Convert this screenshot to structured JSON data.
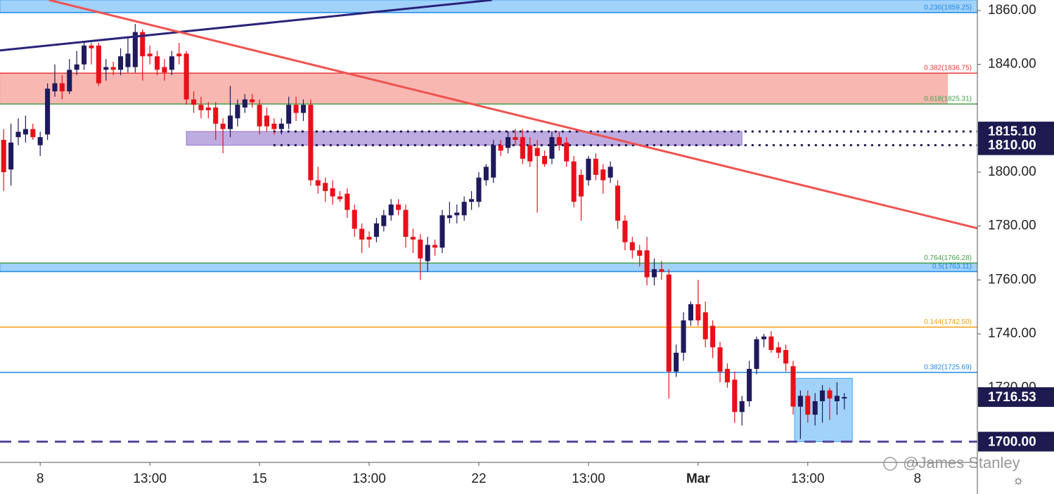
{
  "chart_data": {
    "type": "candlestick",
    "up_color": "#1f1a5c",
    "down_color": "#e8101a",
    "xlim": [
      -0.5,
      133.2
    ],
    "ylim": [
      1692.3,
      1863.9
    ],
    "xticks": [
      {
        "value": 5,
        "label": "8"
      },
      {
        "value": 20,
        "label": "13:00"
      },
      {
        "value": 35,
        "label": "15"
      },
      {
        "value": 50,
        "label": "13:00"
      },
      {
        "value": 65,
        "label": "22"
      },
      {
        "value": 80,
        "label": "13:00"
      },
      {
        "value": 95,
        "label": "Mar"
      },
      {
        "value": 110,
        "label": "13:00"
      },
      {
        "value": 125,
        "label": "8"
      }
    ],
    "yticks": [
      {
        "value": 1860,
        "label": "1860.00"
      },
      {
        "value": 1840,
        "label": "1840.00"
      },
      {
        "value": 1800,
        "label": "1800.00"
      },
      {
        "value": 1780,
        "label": "1780.00"
      },
      {
        "value": 1760,
        "label": "1760.00"
      },
      {
        "value": 1740,
        "label": "1740.00"
      },
      {
        "value": 1720,
        "label": "1720.00"
      }
    ],
    "candles": [
      [
        1812,
        1816,
        1793,
        1800
      ],
      [
        1801,
        1818,
        1795,
        1811
      ],
      [
        1813,
        1820,
        1810,
        1815
      ],
      [
        1814,
        1821,
        1811,
        1816
      ],
      [
        1816,
        1818,
        1812,
        1813
      ],
      [
        1810,
        1815,
        1806,
        1813
      ],
      [
        1814,
        1833,
        1812,
        1831
      ],
      [
        1830,
        1840,
        1828,
        1833
      ],
      [
        1833,
        1836,
        1827,
        1830
      ],
      [
        1830,
        1842,
        1829,
        1838
      ],
      [
        1838,
        1845,
        1836,
        1840
      ],
      [
        1840,
        1848,
        1838,
        1847
      ],
      [
        1847,
        1848,
        1840,
        1846
      ],
      [
        1847,
        1848,
        1832,
        1833
      ],
      [
        1838,
        1842,
        1834,
        1839
      ],
      [
        1839,
        1841,
        1836,
        1838
      ],
      [
        1838,
        1846,
        1836,
        1843
      ],
      [
        1839,
        1850,
        1837,
        1844
      ],
      [
        1839,
        1855,
        1837,
        1852
      ],
      [
        1852,
        1853,
        1834,
        1843
      ],
      [
        1844,
        1847,
        1840,
        1843
      ],
      [
        1843,
        1845,
        1836,
        1838
      ],
      [
        1839,
        1842,
        1834,
        1837
      ],
      [
        1838,
        1845,
        1836,
        1843
      ],
      [
        1844,
        1848,
        1840,
        1843
      ],
      [
        1844,
        1845,
        1825,
        1827
      ],
      [
        1827,
        1830,
        1822,
        1825
      ],
      [
        1825,
        1828,
        1820,
        1823
      ],
      [
        1824,
        1826,
        1820,
        1823
      ],
      [
        1824,
        1826,
        1812,
        1818
      ],
      [
        1818,
        1820,
        1807,
        1816
      ],
      [
        1816,
        1832,
        1813,
        1821
      ],
      [
        1820,
        1827,
        1817,
        1825
      ],
      [
        1824,
        1829,
        1822,
        1827
      ],
      [
        1827,
        1829,
        1824,
        1826
      ],
      [
        1825,
        1827,
        1814,
        1817
      ],
      [
        1821,
        1824,
        1815,
        1817
      ],
      [
        1818,
        1820,
        1814,
        1816
      ],
      [
        1816,
        1820,
        1814,
        1818
      ],
      [
        1818,
        1828,
        1816,
        1825
      ],
      [
        1825,
        1828,
        1819,
        1822
      ],
      [
        1822,
        1827,
        1819,
        1825
      ],
      [
        1825,
        1827,
        1795,
        1797
      ],
      [
        1797,
        1802,
        1792,
        1795
      ],
      [
        1796,
        1798,
        1789,
        1793
      ],
      [
        1794,
        1797,
        1788,
        1791
      ],
      [
        1791,
        1793,
        1789,
        1790
      ],
      [
        1792,
        1794,
        1783,
        1786
      ],
      [
        1786,
        1788,
        1776,
        1779
      ],
      [
        1779,
        1781,
        1770,
        1775
      ],
      [
        1776,
        1778,
        1772,
        1775
      ],
      [
        1776,
        1783,
        1774,
        1781
      ],
      [
        1780,
        1786,
        1778,
        1784
      ],
      [
        1784,
        1790,
        1782,
        1788
      ],
      [
        1788,
        1790,
        1784,
        1786
      ],
      [
        1786,
        1788,
        1772,
        1776
      ],
      [
        1776,
        1779,
        1770,
        1775
      ],
      [
        1775,
        1777,
        1760,
        1768
      ],
      [
        1767,
        1776,
        1763,
        1773
      ],
      [
        1773,
        1775,
        1769,
        1772
      ],
      [
        1772,
        1786,
        1770,
        1784
      ],
      [
        1783,
        1789,
        1781,
        1784
      ],
      [
        1784,
        1788,
        1781,
        1785
      ],
      [
        1784,
        1791,
        1782,
        1789
      ],
      [
        1789,
        1793,
        1786,
        1790
      ],
      [
        1789,
        1800,
        1787,
        1798
      ],
      [
        1797,
        1803,
        1795,
        1802
      ],
      [
        1798,
        1812,
        1796,
        1810
      ],
      [
        1810,
        1812,
        1806,
        1808
      ],
      [
        1809,
        1815,
        1807,
        1813
      ],
      [
        1813,
        1816,
        1810,
        1812
      ],
      [
        1813,
        1816,
        1803,
        1805
      ],
      [
        1810,
        1813,
        1802,
        1804
      ],
      [
        1809,
        1812,
        1785,
        1806
      ],
      [
        1806,
        1808,
        1802,
        1803
      ],
      [
        1805,
        1815,
        1803,
        1813
      ],
      [
        1813,
        1815,
        1808,
        1810
      ],
      [
        1811,
        1813,
        1802,
        1804
      ],
      [
        1804,
        1806,
        1787,
        1789
      ],
      [
        1799,
        1801,
        1782,
        1791
      ],
      [
        1797,
        1806,
        1795,
        1805
      ],
      [
        1805,
        1807,
        1797,
        1799
      ],
      [
        1801,
        1803,
        1792,
        1797
      ],
      [
        1798,
        1804,
        1796,
        1802
      ],
      [
        1795,
        1797,
        1779,
        1782
      ],
      [
        1782,
        1784,
        1771,
        1774
      ],
      [
        1774,
        1776,
        1768,
        1771
      ],
      [
        1771,
        1773,
        1765,
        1769
      ],
      [
        1771,
        1776,
        1758,
        1761
      ],
      [
        1761,
        1768,
        1758,
        1764
      ],
      [
        1764,
        1767,
        1760,
        1763
      ],
      [
        1762,
        1764,
        1716,
        1726
      ],
      [
        1726,
        1736,
        1724,
        1733
      ],
      [
        1733,
        1748,
        1730,
        1745
      ],
      [
        1745,
        1752,
        1743,
        1751
      ],
      [
        1751,
        1760,
        1743,
        1745
      ],
      [
        1748,
        1752,
        1735,
        1738
      ],
      [
        1743,
        1745,
        1731,
        1735
      ],
      [
        1735,
        1737,
        1722,
        1726
      ],
      [
        1727,
        1729,
        1720,
        1722
      ],
      [
        1723,
        1726,
        1707,
        1711
      ],
      [
        1711,
        1717,
        1706,
        1715
      ],
      [
        1715,
        1730,
        1713,
        1727
      ],
      [
        1727,
        1739,
        1725,
        1738
      ],
      [
        1738,
        1740,
        1735,
        1739
      ],
      [
        1739,
        1741,
        1733,
        1734
      ],
      [
        1735,
        1737,
        1731,
        1733
      ],
      [
        1734,
        1736,
        1726,
        1729
      ],
      [
        1728,
        1730,
        1710,
        1713
      ],
      [
        1713,
        1719,
        1701,
        1717
      ],
      [
        1717,
        1719,
        1707,
        1710
      ],
      [
        1710,
        1718,
        1706,
        1715
      ],
      [
        1715,
        1721,
        1707,
        1719
      ],
      [
        1719,
        1720,
        1708,
        1716
      ],
      [
        1715,
        1722,
        1710,
        1717
      ],
      [
        1716,
        1718,
        1712,
        1716.53
      ]
    ],
    "zones": [
      {
        "x": [
          -0.5,
          133.2
        ],
        "y": [
          1859.25,
          1863.9
        ],
        "color": "#90caf9",
        "border": "#42a5f5"
      },
      {
        "x": [
          -0.5,
          129.1
        ],
        "y": [
          1825.31,
          1836.75
        ],
        "color": "#f8aaa5",
        "border": "#f8aaa5"
      },
      {
        "x": [
          25,
          101
        ],
        "y": [
          1810,
          1815.1
        ],
        "color": "#b39ddb",
        "border": "#9575cd"
      },
      {
        "x": [
          -0.5,
          133.2
        ],
        "y": [
          1763.11,
          1766.28
        ],
        "color": "#90caf9",
        "border": "#42a5f5"
      },
      {
        "x": [
          108.2,
          116.1
        ],
        "y": [
          1700,
          1723.5
        ],
        "color": "#90caf9",
        "border": "#42a5f5"
      }
    ],
    "levels": [
      {
        "label": "0.236(1859.25)",
        "value": 1859.25,
        "color": "#1e88e5"
      },
      {
        "label": "0.382(1836.75)",
        "value": 1836.75,
        "color": "#e53935"
      },
      {
        "label": "0.618(1825.31)",
        "value": 1825.31,
        "color": "#43a047"
      },
      {
        "label": "0.764(1766.28)",
        "value": 1766.28,
        "color": "#43a047"
      },
      {
        "label": "0.5(1763.11)",
        "value": 1763.11,
        "color": "#1e88e5"
      },
      {
        "label": "0.144(1742.50)",
        "value": 1742.5,
        "color": "#f59e0b"
      },
      {
        "label": "0.382(1725.69)",
        "value": 1725.69,
        "color": "#1e88e5"
      }
    ],
    "trendlines": [
      {
        "x": [
          -0.5,
          66.8
        ],
        "y": [
          1845.2,
          1863.9
        ],
        "color": "#2a237a"
      },
      {
        "x": [
          6.2,
          133.2
        ],
        "y": [
          1863.9,
          1779.2
        ],
        "color": "#ef5350"
      }
    ],
    "markers": [
      {
        "value": 1815.1,
        "label": "1815.10",
        "line": "dotted",
        "from": 36.9
      },
      {
        "value": 1810,
        "label": "1810.00",
        "line": "dotted",
        "from": 36.9
      },
      {
        "value": 1716.53,
        "label": "1716.53",
        "line": "none",
        "from": 133.2
      },
      {
        "value": 1700,
        "label": "1700.00",
        "line": "dashed",
        "from": -0.5
      }
    ],
    "marker_color": "#1c1a4f",
    "watermark": "@James Stanley"
  }
}
